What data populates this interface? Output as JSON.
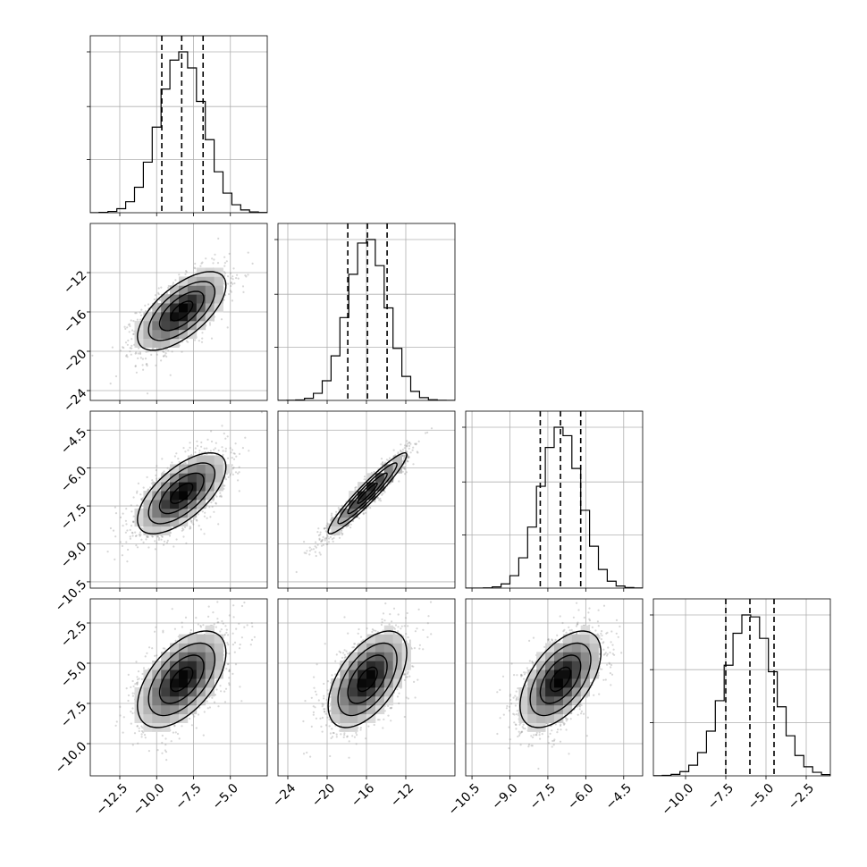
{
  "chart_data": {
    "type": "corner",
    "parameters": [
      {
        "range": [
          -14.5,
          -2.5
        ],
        "ticks": [
          -12.5,
          -10.0,
          -7.5,
          -5.0
        ],
        "tick_labels": [
          "−12.5",
          "−10.0",
          "−7.5",
          "−5.0"
        ],
        "mean": -8.3,
        "sd": 1.5,
        "quantiles": [
          -9.65,
          -8.3,
          -6.85
        ]
      },
      {
        "range": [
          -25,
          -7
        ],
        "ticks": [
          -24,
          -20,
          -16,
          -12
        ],
        "tick_labels": [
          "−24",
          "−20",
          "−16",
          "−12"
        ],
        "mean": -15.9,
        "sd": 2.0,
        "quantiles": [
          -17.9,
          -15.9,
          -13.9
        ]
      },
      {
        "range": [
          -10.75,
          -3.75
        ],
        "ticks": [
          -10.5,
          -9.0,
          -7.5,
          -6.0,
          -4.5
        ],
        "tick_labels": [
          "−10.5",
          "−9.0",
          "−7.5",
          "−6.0",
          "−4.5"
        ],
        "mean": -7.0,
        "sd": 0.8,
        "quantiles": [
          -7.8,
          -7.0,
          -6.2
        ]
      },
      {
        "range": [
          -12,
          -1
        ],
        "ticks": [
          -10.0,
          -7.5,
          -5.0,
          -2.5
        ],
        "tick_labels": [
          "−10.0",
          "−7.5",
          "−5.0",
          "−2.5"
        ],
        "mean": -6.0,
        "sd": 1.5,
        "quantiles": [
          -7.5,
          -6.0,
          -4.5
        ]
      }
    ],
    "correlations": {
      "1-0": 0.65,
      "2-0": 0.65,
      "2-1": 0.95,
      "3-0": 0.55,
      "3-1": 0.55,
      "3-2": 0.55
    },
    "hist_bins": 20,
    "grid": true,
    "quantile_line_style": "dashed",
    "contour_levels_sigma": [
      0.5,
      1.0,
      1.5,
      2.0
    ]
  }
}
